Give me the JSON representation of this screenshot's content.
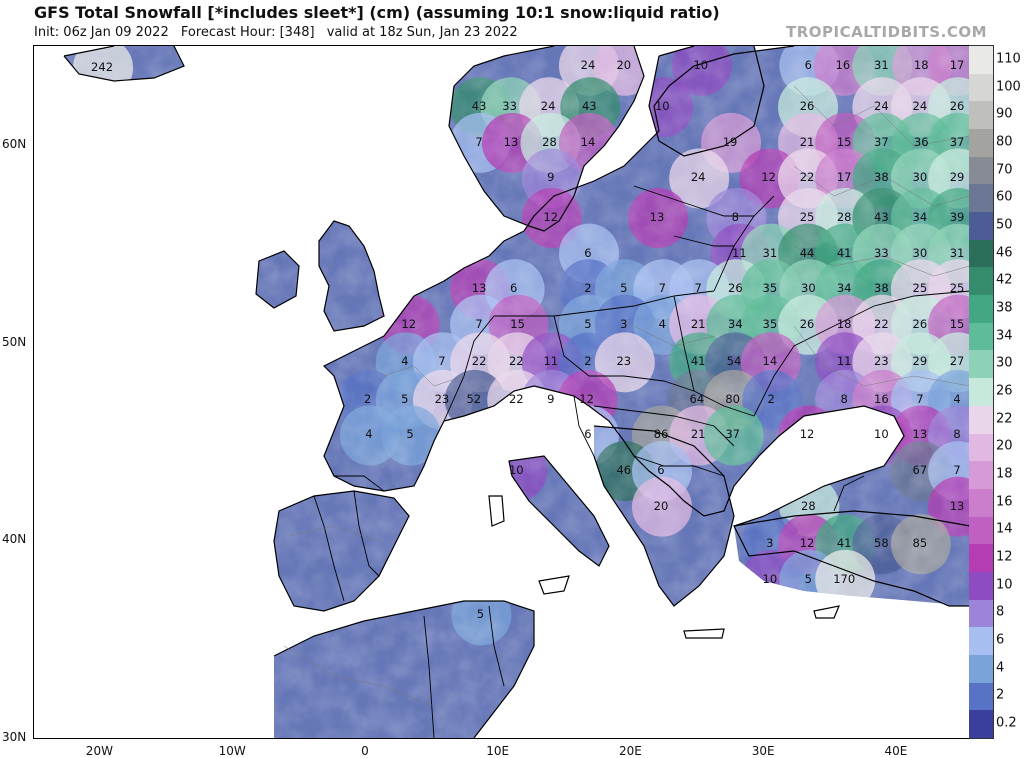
{
  "header": {
    "title": "GFS Total Snowfall [*includes sleet*] (cm) (assuming 10:1 snow:liquid ratio)",
    "init": "Init: 06z Jan 09 2022",
    "forecast_hour": "Forecast Hour: [348]",
    "valid": "valid at 18z Sun, Jan 23 2022",
    "brand": "TROPICALTIDBITS.COM"
  },
  "map": {
    "lat_labels": [
      {
        "text": "60N",
        "lat": 60
      },
      {
        "text": "50N",
        "lat": 50
      },
      {
        "text": "40N",
        "lat": 40
      },
      {
        "text": "30N",
        "lat": 30
      }
    ],
    "lon_labels": [
      {
        "text": "20W",
        "lon": -20
      },
      {
        "text": "10W",
        "lon": -10
      },
      {
        "text": "0",
        "lon": 0
      },
      {
        "text": "10E",
        "lon": 10
      },
      {
        "text": "20E",
        "lon": 20
      },
      {
        "text": "30E",
        "lon": 30
      },
      {
        "text": "40E",
        "lon": 40
      }
    ],
    "values": [
      {
        "v": "242",
        "lon": -19.8,
        "lat": 63.9
      },
      {
        "v": "24",
        "lon": 16.8,
        "lat": 64.0
      },
      {
        "v": "20",
        "lon": 19.5,
        "lat": 64.0
      },
      {
        "v": "10",
        "lon": 25.3,
        "lat": 64.0
      },
      {
        "v": "6",
        "lon": 33.4,
        "lat": 64.0
      },
      {
        "v": "16",
        "lon": 36.0,
        "lat": 64.0
      },
      {
        "v": "31",
        "lon": 38.9,
        "lat": 64.0
      },
      {
        "v": "18",
        "lon": 41.9,
        "lat": 64.0
      },
      {
        "v": "17",
        "lon": 44.6,
        "lat": 64.0
      },
      {
        "v": "43",
        "lon": 8.6,
        "lat": 61.9
      },
      {
        "v": "33",
        "lon": 10.9,
        "lat": 61.9
      },
      {
        "v": "24",
        "lon": 13.8,
        "lat": 61.9
      },
      {
        "v": "43",
        "lon": 16.9,
        "lat": 61.9
      },
      {
        "v": "10",
        "lon": 22.4,
        "lat": 61.9
      },
      {
        "v": "26",
        "lon": 33.3,
        "lat": 61.9
      },
      {
        "v": "24",
        "lon": 38.9,
        "lat": 61.9
      },
      {
        "v": "24",
        "lon": 41.8,
        "lat": 61.9
      },
      {
        "v": "26",
        "lon": 44.6,
        "lat": 61.9
      },
      {
        "v": "7",
        "lon": 8.6,
        "lat": 60.1
      },
      {
        "v": "13",
        "lon": 11.0,
        "lat": 60.1
      },
      {
        "v": "28",
        "lon": 13.9,
        "lat": 60.1
      },
      {
        "v": "14",
        "lon": 16.8,
        "lat": 60.1
      },
      {
        "v": "19",
        "lon": 27.5,
        "lat": 60.1
      },
      {
        "v": "21",
        "lon": 33.3,
        "lat": 60.1
      },
      {
        "v": "15",
        "lon": 36.1,
        "lat": 60.1
      },
      {
        "v": "37",
        "lon": 38.9,
        "lat": 60.1
      },
      {
        "v": "36",
        "lon": 41.9,
        "lat": 60.1
      },
      {
        "v": "37",
        "lon": 44.6,
        "lat": 60.1
      },
      {
        "v": "9",
        "lon": 14.0,
        "lat": 58.3
      },
      {
        "v": "24",
        "lon": 25.1,
        "lat": 58.3
      },
      {
        "v": "12",
        "lon": 30.4,
        "lat": 58.3
      },
      {
        "v": "22",
        "lon": 33.3,
        "lat": 58.3
      },
      {
        "v": "17",
        "lon": 36.1,
        "lat": 58.3
      },
      {
        "v": "38",
        "lon": 38.9,
        "lat": 58.3
      },
      {
        "v": "30",
        "lon": 41.8,
        "lat": 58.3
      },
      {
        "v": "29",
        "lon": 44.6,
        "lat": 58.3
      },
      {
        "v": "12",
        "lon": 14.0,
        "lat": 56.3
      },
      {
        "v": "13",
        "lon": 22.0,
        "lat": 56.3
      },
      {
        "v": "8",
        "lon": 27.9,
        "lat": 56.3
      },
      {
        "v": "25",
        "lon": 33.3,
        "lat": 56.3
      },
      {
        "v": "28",
        "lon": 36.1,
        "lat": 56.3
      },
      {
        "v": "43",
        "lon": 38.9,
        "lat": 56.3
      },
      {
        "v": "34",
        "lon": 41.8,
        "lat": 56.3
      },
      {
        "v": "39",
        "lon": 44.6,
        "lat": 56.3
      },
      {
        "v": "6",
        "lon": 16.8,
        "lat": 54.5
      },
      {
        "v": "11",
        "lon": 28.2,
        "lat": 54.5
      },
      {
        "v": "31",
        "lon": 30.5,
        "lat": 54.5
      },
      {
        "v": "44",
        "lon": 33.3,
        "lat": 54.5
      },
      {
        "v": "41",
        "lon": 36.1,
        "lat": 54.5
      },
      {
        "v": "33",
        "lon": 38.9,
        "lat": 54.5
      },
      {
        "v": "30",
        "lon": 41.8,
        "lat": 54.5
      },
      {
        "v": "31",
        "lon": 44.6,
        "lat": 54.5
      },
      {
        "v": "13",
        "lon": 8.6,
        "lat": 52.7
      },
      {
        "v": "6",
        "lon": 11.2,
        "lat": 52.7
      },
      {
        "v": "2",
        "lon": 16.8,
        "lat": 52.7
      },
      {
        "v": "5",
        "lon": 19.5,
        "lat": 52.7
      },
      {
        "v": "7",
        "lon": 22.4,
        "lat": 52.7
      },
      {
        "v": "7",
        "lon": 25.1,
        "lat": 52.7
      },
      {
        "v": "26",
        "lon": 27.9,
        "lat": 52.7
      },
      {
        "v": "35",
        "lon": 30.5,
        "lat": 52.7
      },
      {
        "v": "30",
        "lon": 33.4,
        "lat": 52.7
      },
      {
        "v": "34",
        "lon": 36.1,
        "lat": 52.7
      },
      {
        "v": "38",
        "lon": 38.9,
        "lat": 52.7
      },
      {
        "v": "25",
        "lon": 41.8,
        "lat": 52.7
      },
      {
        "v": "25",
        "lon": 44.6,
        "lat": 52.7
      },
      {
        "v": "12",
        "lon": 3.3,
        "lat": 50.9
      },
      {
        "v": "7",
        "lon": 8.6,
        "lat": 50.9
      },
      {
        "v": "15",
        "lon": 11.5,
        "lat": 50.9
      },
      {
        "v": "5",
        "lon": 16.8,
        "lat": 50.9
      },
      {
        "v": "3",
        "lon": 19.5,
        "lat": 50.9
      },
      {
        "v": "4",
        "lon": 22.4,
        "lat": 50.9
      },
      {
        "v": "21",
        "lon": 25.1,
        "lat": 50.9
      },
      {
        "v": "34",
        "lon": 27.9,
        "lat": 50.9
      },
      {
        "v": "35",
        "lon": 30.5,
        "lat": 50.9
      },
      {
        "v": "26",
        "lon": 33.3,
        "lat": 50.9
      },
      {
        "v": "18",
        "lon": 36.1,
        "lat": 50.9
      },
      {
        "v": "22",
        "lon": 38.9,
        "lat": 50.9
      },
      {
        "v": "26",
        "lon": 41.8,
        "lat": 50.9
      },
      {
        "v": "15",
        "lon": 44.6,
        "lat": 50.9
      },
      {
        "v": "4",
        "lon": 3.0,
        "lat": 49.0
      },
      {
        "v": "7",
        "lon": 5.8,
        "lat": 49.0
      },
      {
        "v": "22",
        "lon": 8.6,
        "lat": 49.0
      },
      {
        "v": "22",
        "lon": 11.4,
        "lat": 49.0
      },
      {
        "v": "11",
        "lon": 14.0,
        "lat": 49.0
      },
      {
        "v": "2",
        "lon": 16.8,
        "lat": 49.0
      },
      {
        "v": "23",
        "lon": 19.5,
        "lat": 49.0
      },
      {
        "v": "41",
        "lon": 25.1,
        "lat": 49.0
      },
      {
        "v": "54",
        "lon": 27.8,
        "lat": 49.0
      },
      {
        "v": "14",
        "lon": 30.5,
        "lat": 49.0
      },
      {
        "v": "11",
        "lon": 36.1,
        "lat": 49.0
      },
      {
        "v": "23",
        "lon": 38.9,
        "lat": 49.0
      },
      {
        "v": "29",
        "lon": 41.8,
        "lat": 49.0
      },
      {
        "v": "27",
        "lon": 44.6,
        "lat": 49.0
      },
      {
        "v": "2",
        "lon": 0.2,
        "lat": 47.1
      },
      {
        "v": "5",
        "lon": 3.0,
        "lat": 47.1
      },
      {
        "v": "23",
        "lon": 5.8,
        "lat": 47.1
      },
      {
        "v": "52",
        "lon": 8.2,
        "lat": 47.1
      },
      {
        "v": "22",
        "lon": 11.4,
        "lat": 47.1
      },
      {
        "v": "9",
        "lon": 14.0,
        "lat": 47.1
      },
      {
        "v": "12",
        "lon": 16.7,
        "lat": 47.1
      },
      {
        "v": "64",
        "lon": 25.0,
        "lat": 47.1
      },
      {
        "v": "80",
        "lon": 27.7,
        "lat": 47.1
      },
      {
        "v": "2",
        "lon": 30.6,
        "lat": 47.1
      },
      {
        "v": "8",
        "lon": 36.1,
        "lat": 47.1
      },
      {
        "v": "16",
        "lon": 38.9,
        "lat": 47.1
      },
      {
        "v": "7",
        "lon": 41.8,
        "lat": 47.1
      },
      {
        "v": "4",
        "lon": 44.6,
        "lat": 47.1
      },
      {
        "v": "4",
        "lon": 0.3,
        "lat": 45.3
      },
      {
        "v": "5",
        "lon": 3.4,
        "lat": 45.3
      },
      {
        "v": "6",
        "lon": 16.8,
        "lat": 45.3
      },
      {
        "v": "86",
        "lon": 22.3,
        "lat": 45.3
      },
      {
        "v": "21",
        "lon": 25.1,
        "lat": 45.3
      },
      {
        "v": "37",
        "lon": 27.7,
        "lat": 45.3
      },
      {
        "v": "12",
        "lon": 33.3,
        "lat": 45.3
      },
      {
        "v": "10",
        "lon": 38.9,
        "lat": 45.3
      },
      {
        "v": "13",
        "lon": 41.8,
        "lat": 45.3
      },
      {
        "v": "8",
        "lon": 44.6,
        "lat": 45.3
      },
      {
        "v": "10",
        "lon": 11.4,
        "lat": 43.5
      },
      {
        "v": "46",
        "lon": 19.5,
        "lat": 43.5
      },
      {
        "v": "6",
        "lon": 22.3,
        "lat": 43.5
      },
      {
        "v": "67",
        "lon": 41.8,
        "lat": 43.5
      },
      {
        "v": "7",
        "lon": 44.6,
        "lat": 43.5
      },
      {
        "v": "20",
        "lon": 22.3,
        "lat": 41.7
      },
      {
        "v": "28",
        "lon": 33.4,
        "lat": 41.7
      },
      {
        "v": "13",
        "lon": 44.6,
        "lat": 41.7
      },
      {
        "v": "3",
        "lon": 30.5,
        "lat": 39.8
      },
      {
        "v": "12",
        "lon": 33.3,
        "lat": 39.8
      },
      {
        "v": "41",
        "lon": 36.1,
        "lat": 39.8
      },
      {
        "v": "58",
        "lon": 38.9,
        "lat": 39.8
      },
      {
        "v": "85",
        "lon": 41.8,
        "lat": 39.8
      },
      {
        "v": "10",
        "lon": 30.5,
        "lat": 38.0
      },
      {
        "v": "5",
        "lon": 33.4,
        "lat": 38.0
      },
      {
        "v": "170",
        "lon": 36.1,
        "lat": 38.0
      },
      {
        "v": "5",
        "lon": 8.7,
        "lat": 36.2
      }
    ],
    "colors": {
      "water": "#ffffff",
      "land": "#ffffff",
      "border": "#000000",
      "internal_border": "#8a8a8a"
    }
  },
  "legend": {
    "labels": [
      "110",
      "100",
      "90",
      "80",
      "70",
      "60",
      "50",
      "46",
      "42",
      "38",
      "34",
      "30",
      "26",
      "22",
      "20",
      "18",
      "16",
      "14",
      "12",
      "10",
      "8",
      "6",
      "4",
      "2",
      "0.2"
    ],
    "colors": [
      "#e9e9e5",
      "#d6d6d2",
      "#bfbfbb",
      "#a3a39f",
      "#868b94",
      "#6c7794",
      "#4c5d95",
      "#2c6e59",
      "#348c6c",
      "#42a782",
      "#5fbc98",
      "#8dd2b6",
      "#c6e9dc",
      "#ead6ea",
      "#e1b8e1",
      "#d69bd6",
      "#cb7ecb",
      "#c060c0",
      "#b43db4",
      "#8f4cc2",
      "#9c85d8",
      "#a7bff0",
      "#7aa3d9",
      "#5873c6",
      "#3b3e9d"
    ]
  }
}
